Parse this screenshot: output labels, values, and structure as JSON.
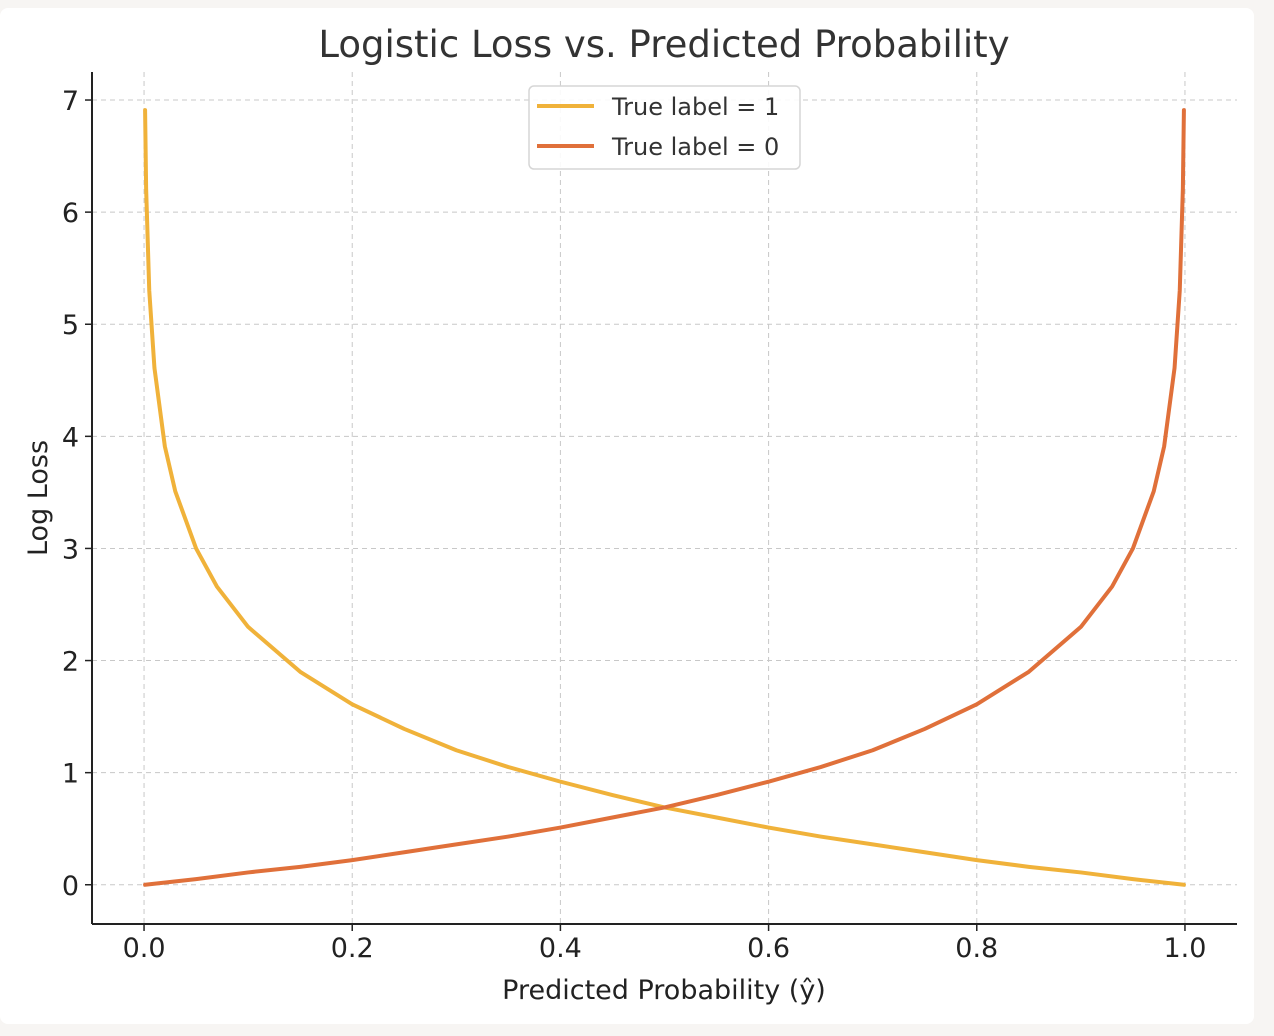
{
  "chart_data": {
    "type": "line",
    "title": "Logistic Loss vs. Predicted Probability",
    "xlabel": "Predicted Probability (ŷ)",
    "ylabel": "Log Loss",
    "xlim": [
      -0.05,
      1.05
    ],
    "ylim": [
      -0.35,
      7.25
    ],
    "xticks": [
      0.0,
      0.2,
      0.4,
      0.6,
      0.8,
      1.0
    ],
    "xtick_labels": [
      "0.0",
      "0.2",
      "0.4",
      "0.6",
      "0.8",
      "1.0"
    ],
    "yticks": [
      0,
      1,
      2,
      3,
      4,
      5,
      6,
      7
    ],
    "ytick_labels": [
      "0",
      "1",
      "2",
      "3",
      "4",
      "5",
      "6",
      "7"
    ],
    "grid": true,
    "legend_position": "top-center",
    "series": [
      {
        "name": "True label = 1",
        "color": "#f0b23a",
        "x": [
          0.001,
          0.002,
          0.005,
          0.01,
          0.02,
          0.03,
          0.05,
          0.07,
          0.1,
          0.15,
          0.2,
          0.25,
          0.3,
          0.35,
          0.4,
          0.45,
          0.5,
          0.55,
          0.6,
          0.65,
          0.7,
          0.75,
          0.8,
          0.85,
          0.9,
          0.95,
          0.999
        ],
        "y": [
          6.91,
          6.21,
          5.3,
          4.61,
          3.91,
          3.51,
          3.0,
          2.66,
          2.3,
          1.9,
          1.61,
          1.39,
          1.2,
          1.05,
          0.92,
          0.8,
          0.69,
          0.6,
          0.51,
          0.43,
          0.36,
          0.29,
          0.22,
          0.16,
          0.11,
          0.05,
          0.0
        ]
      },
      {
        "name": "True label = 0",
        "color": "#e0703a",
        "x": [
          0.001,
          0.05,
          0.1,
          0.15,
          0.2,
          0.25,
          0.3,
          0.35,
          0.4,
          0.45,
          0.5,
          0.55,
          0.6,
          0.65,
          0.7,
          0.75,
          0.8,
          0.85,
          0.9,
          0.93,
          0.95,
          0.97,
          0.98,
          0.99,
          0.995,
          0.998,
          0.999
        ],
        "y": [
          0.0,
          0.05,
          0.11,
          0.16,
          0.22,
          0.29,
          0.36,
          0.43,
          0.51,
          0.6,
          0.69,
          0.8,
          0.92,
          1.05,
          1.2,
          1.39,
          1.61,
          1.9,
          2.3,
          2.66,
          3.0,
          3.51,
          3.91,
          4.61,
          5.3,
          6.21,
          6.91
        ]
      }
    ]
  }
}
